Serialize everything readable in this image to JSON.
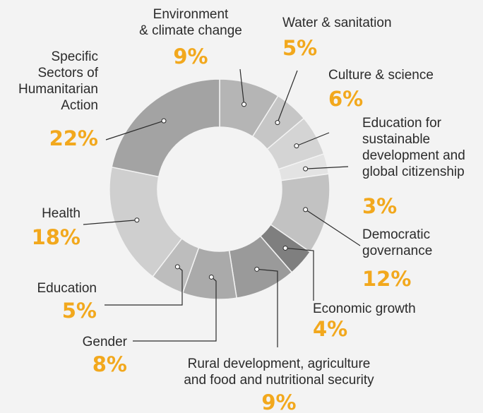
{
  "chart_data": {
    "type": "pie",
    "donut": true,
    "slices": [
      {
        "label": "Environment\n& climate change",
        "value": 9,
        "value_label": "9%",
        "color": "#b5b5b5"
      },
      {
        "label": "Water & sanitation",
        "value": 5,
        "value_label": "5%",
        "color": "#c6c6c6"
      },
      {
        "label": "Culture & science",
        "value": 6,
        "value_label": "6%",
        "color": "#d4d4d4"
      },
      {
        "label": "Education for\nsustainable\ndevelopment and\nglobal citizenship",
        "value": 3,
        "value_label": "3%",
        "color": "#e3e3e3"
      },
      {
        "label": "Democratic\ngovernance",
        "value": 12,
        "value_label": "12%",
        "color": "#c2c2c2"
      },
      {
        "label": "Economic growth",
        "value": 4,
        "value_label": "4%",
        "color": "#7f7f7f"
      },
      {
        "label": "Rural development, agriculture\nand food and nutritional security",
        "value": 9,
        "value_label": "9%",
        "color": "#9a9a9a"
      },
      {
        "label": "Gender",
        "value": 8,
        "value_label": "8%",
        "color": "#aaaaaa"
      },
      {
        "label": "Education",
        "value": 5,
        "value_label": "5%",
        "color": "#bdbdbd"
      },
      {
        "label": "Health",
        "value": 18,
        "value_label": "18%",
        "color": "#cfcfcf"
      },
      {
        "label": "Specific\nSectors of\nHumanitarian\nAction",
        "value": 22,
        "value_label": "22%",
        "color": "#a3a3a3"
      }
    ]
  }
}
